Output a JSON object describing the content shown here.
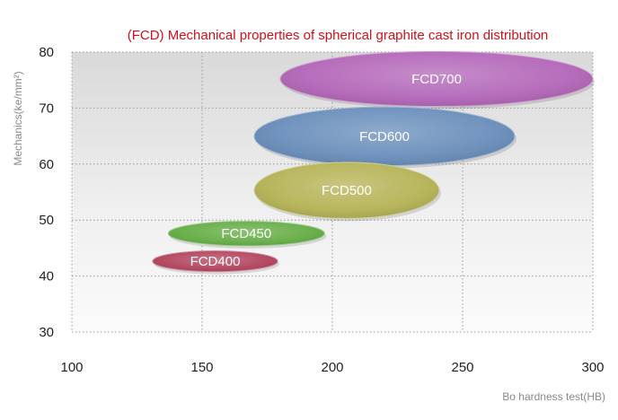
{
  "chart_data": {
    "type": "scatter",
    "title": "(FCD) Mechanical properties of spherical graphite cast iron distribution",
    "xlabel": "Bo hardness test(HB)",
    "ylabel": "Mechanics(ke/mm²)",
    "xlim": [
      100,
      300
    ],
    "ylim": [
      30,
      80
    ],
    "x_ticks": [
      "100",
      "150",
      "200",
      "250",
      "300"
    ],
    "y_ticks": [
      "30",
      "40",
      "50",
      "60",
      "70",
      "80"
    ],
    "grid": true,
    "legend": "none",
    "series": [
      {
        "name": "FCD400",
        "x_range": [
          131,
          179
        ],
        "y_range": [
          40.8,
          44.5
        ],
        "color": "#b54a63"
      },
      {
        "name": "FCD450",
        "x_range": [
          137,
          197
        ],
        "y_range": [
          45.4,
          49.8
        ],
        "color": "#6ab04c"
      },
      {
        "name": "FCD500",
        "x_range": [
          170,
          241
        ],
        "y_range": [
          50.3,
          60.3
        ],
        "color": "#b8b65c"
      },
      {
        "name": "FCD600",
        "x_range": [
          170,
          270
        ],
        "y_range": [
          59.7,
          70.2
        ],
        "color": "#6f92bd"
      },
      {
        "name": "FCD700",
        "x_range": [
          180,
          300
        ],
        "y_range": [
          70.3,
          80.1
        ],
        "color": "#b66cbb"
      }
    ]
  }
}
